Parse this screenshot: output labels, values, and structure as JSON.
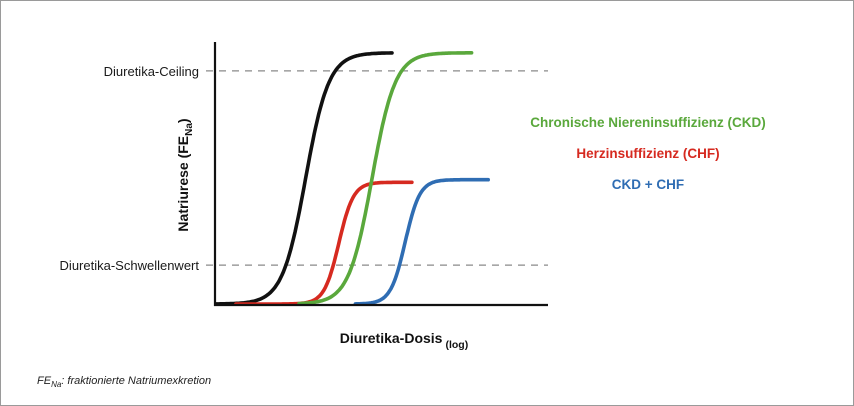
{
  "chart_data": {
    "type": "line",
    "xlabel": "Diuretika-Dosis",
    "xlabel_sub": "(log)",
    "ylabel": "Natriurese (FE",
    "ylabel_sub": "Na",
    "ylabel_end": ")",
    "x_scale": "log",
    "grid": false,
    "legend_position": "right",
    "reference_lines": [
      {
        "label": "Diuretika-Ceiling",
        "value": 0.9
      },
      {
        "label": "Diuretika-Schwellenwert",
        "value": 0.15
      }
    ],
    "series": [
      {
        "color": "#111111",
        "style": "sigmoid",
        "x_start": 0.0,
        "x_end": 0.53,
        "x_mid": 0.27,
        "steepness": 0.035,
        "y_min": 0.0,
        "y_max": 0.97
      },
      {
        "name": "Herzinsuffizienz (CHF)",
        "color": "#d62a20",
        "style": "sigmoid",
        "x_start": 0.06,
        "x_end": 0.59,
        "x_mid": 0.37,
        "steepness": 0.022,
        "y_min": 0.0,
        "y_max": 0.47
      },
      {
        "name": "Chronische Niereninsuffizienz (CKD)",
        "color": "#5aa83c",
        "style": "sigmoid",
        "x_start": 0.25,
        "x_end": 0.77,
        "x_mid": 0.47,
        "steepness": 0.035,
        "y_min": 0.0,
        "y_max": 0.97
      },
      {
        "name": "CKD + CHF",
        "color": "#2f6db3",
        "style": "sigmoid",
        "x_start": 0.42,
        "x_end": 0.82,
        "x_mid": 0.57,
        "steepness": 0.022,
        "y_min": 0.0,
        "y_max": 0.48
      }
    ]
  },
  "legend": {
    "ckd": "Chronische Niereninsuffizienz (CKD)",
    "chf": "Herzinsuffizienz (CHF)",
    "both": "CKD + CHF"
  },
  "footnote": {
    "symbol": "FE",
    "symbol_sub": "Na",
    "text": ": fraktionierte Natriumexkretion"
  }
}
